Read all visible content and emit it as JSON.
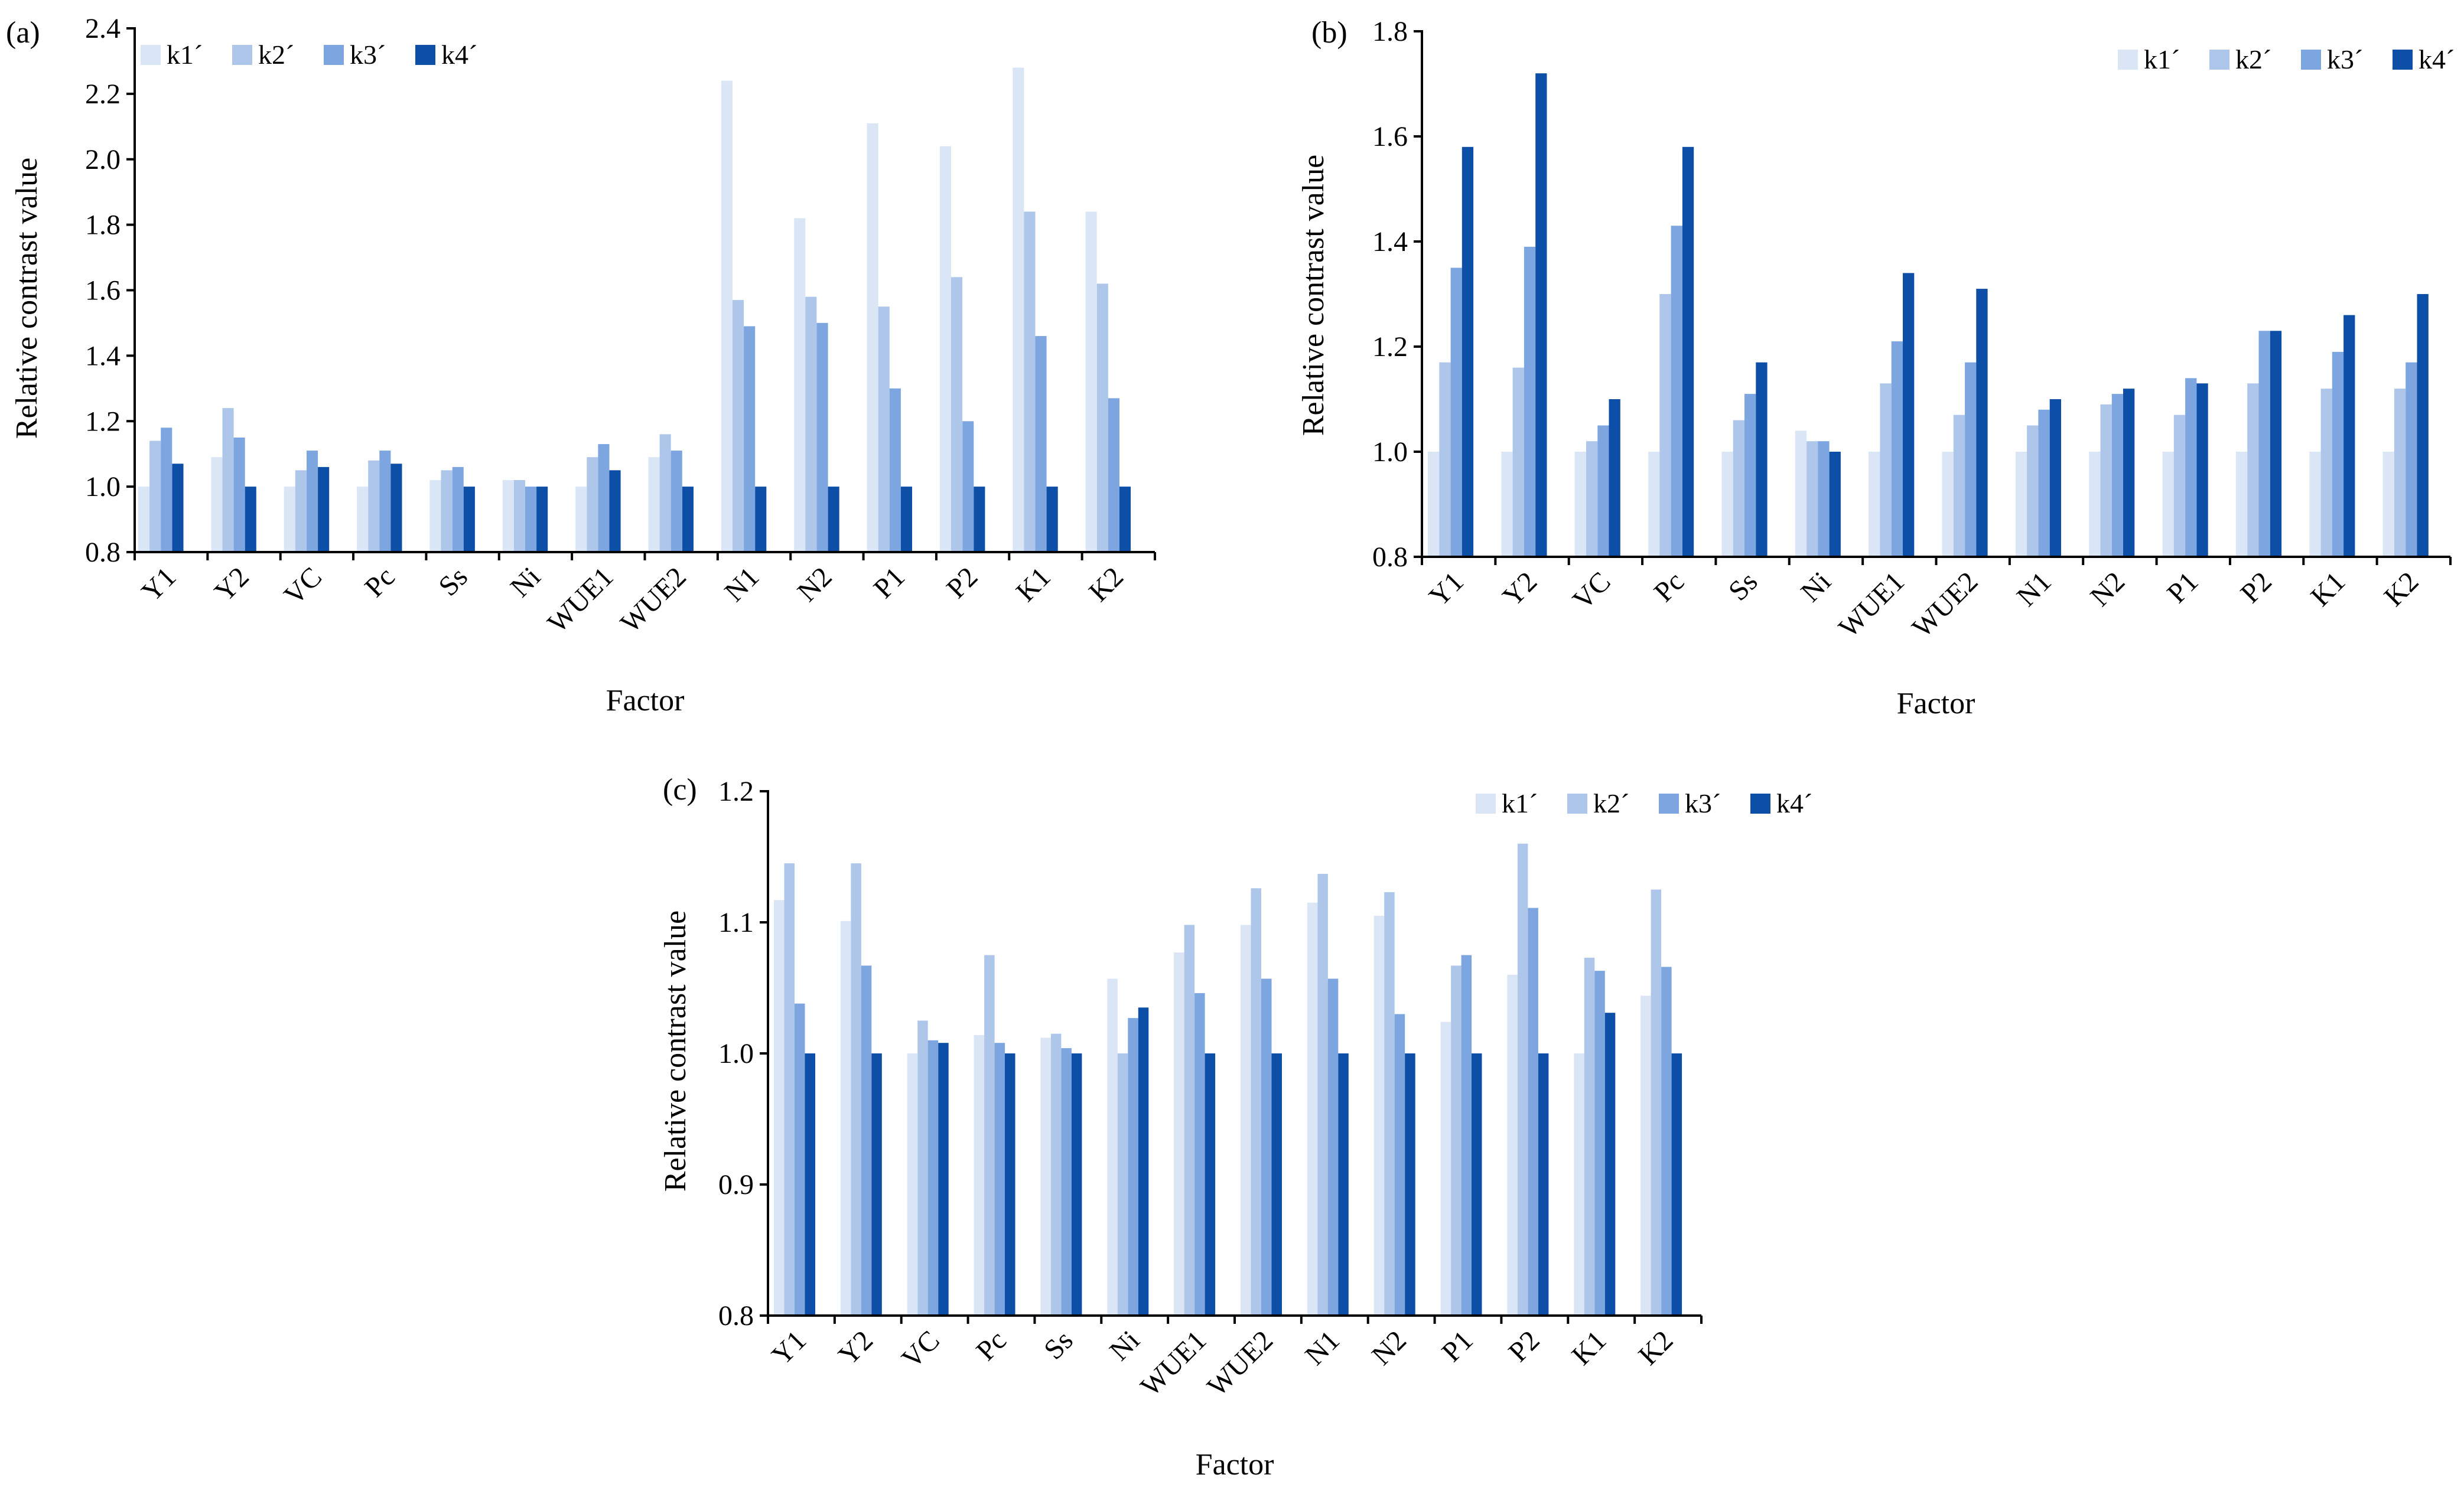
{
  "figure": {
    "series_names": [
      "k1´",
      "k2´",
      "k3´",
      "k4´"
    ],
    "series_colors": [
      "#dae5f5",
      "#aec6ea",
      "#7da6e0",
      "#0d4ea6"
    ]
  },
  "chart_data": [
    {
      "type": "bar",
      "panel_label": "(a)",
      "title": "",
      "xlabel": "Factor",
      "ylabel": "Relative contrast value",
      "ylim": [
        0.8,
        2.4
      ],
      "yticks": [
        "0.8",
        "1.0",
        "1.2",
        "1.4",
        "1.6",
        "1.8",
        "2.0",
        "2.2",
        "2.4"
      ],
      "legend": "top-left",
      "categories": [
        "Y1",
        "Y2",
        "VC",
        "Pc",
        "Ss",
        "Ni",
        "WUE1",
        "WUE2",
        "N1",
        "N2",
        "P1",
        "P2",
        "K1",
        "K2"
      ],
      "series": [
        {
          "name": "k1´",
          "values": [
            1.0,
            1.09,
            1.0,
            1.0,
            1.02,
            1.02,
            1.0,
            1.09,
            2.24,
            1.82,
            2.11,
            2.04,
            2.28,
            1.84
          ]
        },
        {
          "name": "k2´",
          "values": [
            1.14,
            1.24,
            1.05,
            1.08,
            1.05,
            1.02,
            1.09,
            1.16,
            1.57,
            1.58,
            1.55,
            1.64,
            1.84,
            1.62
          ]
        },
        {
          "name": "k3´",
          "values": [
            1.18,
            1.15,
            1.11,
            1.11,
            1.06,
            1.0,
            1.13,
            1.11,
            1.49,
            1.5,
            1.3,
            1.2,
            1.46,
            1.27
          ]
        },
        {
          "name": "k4´",
          "values": [
            1.07,
            1.0,
            1.06,
            1.07,
            1.0,
            1.0,
            1.05,
            1.0,
            1.0,
            1.0,
            1.0,
            1.0,
            1.0,
            1.0
          ]
        }
      ]
    },
    {
      "type": "bar",
      "panel_label": "(b)",
      "title": "",
      "xlabel": "Factor",
      "ylabel": "Relative contrast value",
      "ylim": [
        0.8,
        1.8
      ],
      "yticks": [
        "0.8",
        "1.0",
        "1.2",
        "1.4",
        "1.6",
        "1.8"
      ],
      "legend": "top-right",
      "categories": [
        "Y1",
        "Y2",
        "VC",
        "Pc",
        "Ss",
        "Ni",
        "WUE1",
        "WUE2",
        "N1",
        "N2",
        "P1",
        "P2",
        "K1",
        "K2"
      ],
      "series": [
        {
          "name": "k1´",
          "values": [
            1.0,
            1.0,
            1.0,
            1.0,
            1.0,
            1.04,
            1.0,
            1.0,
            1.0,
            1.0,
            1.0,
            1.0,
            1.0,
            1.0
          ]
        },
        {
          "name": "k2´",
          "values": [
            1.17,
            1.16,
            1.02,
            1.3,
            1.06,
            1.02,
            1.13,
            1.07,
            1.05,
            1.09,
            1.07,
            1.13,
            1.12,
            1.12
          ]
        },
        {
          "name": "k3´",
          "values": [
            1.35,
            1.39,
            1.05,
            1.43,
            1.11,
            1.02,
            1.21,
            1.17,
            1.08,
            1.11,
            1.14,
            1.23,
            1.19,
            1.17
          ]
        },
        {
          "name": "k4´",
          "values": [
            1.58,
            1.72,
            1.1,
            1.58,
            1.17,
            1.0,
            1.34,
            1.31,
            1.1,
            1.12,
            1.13,
            1.23,
            1.26,
            1.3
          ]
        }
      ]
    },
    {
      "type": "bar",
      "panel_label": "(c)",
      "title": "",
      "xlabel": "Factor",
      "ylabel": "Relative contrast value",
      "ylim": [
        0.8,
        1.2
      ],
      "yticks": [
        "0.8",
        "0.9",
        "1.0",
        "1.1",
        "1.2"
      ],
      "legend": "top-right",
      "categories": [
        "Y1",
        "Y2",
        "VC",
        "Pc",
        "Ss",
        "Ni",
        "WUE1",
        "WUE2",
        "N1",
        "N2",
        "P1",
        "P2",
        "K1",
        "K2"
      ],
      "series": [
        {
          "name": "k1´",
          "values": [
            1.117,
            1.101,
            1.0,
            1.014,
            1.012,
            1.057,
            1.077,
            1.098,
            1.115,
            1.105,
            1.024,
            1.06,
            1.0,
            1.044
          ]
        },
        {
          "name": "k2´",
          "values": [
            1.145,
            1.145,
            1.025,
            1.075,
            1.015,
            1.0,
            1.098,
            1.126,
            1.137,
            1.123,
            1.067,
            1.16,
            1.073,
            1.125
          ]
        },
        {
          "name": "k3´",
          "values": [
            1.038,
            1.067,
            1.01,
            1.008,
            1.004,
            1.027,
            1.046,
            1.057,
            1.057,
            1.03,
            1.075,
            1.111,
            1.063,
            1.066
          ]
        },
        {
          "name": "k4´",
          "values": [
            1.0,
            1.0,
            1.008,
            1.0,
            1.0,
            1.035,
            1.0,
            1.0,
            1.0,
            1.0,
            1.0,
            1.0,
            1.031,
            1.0
          ]
        }
      ]
    }
  ]
}
